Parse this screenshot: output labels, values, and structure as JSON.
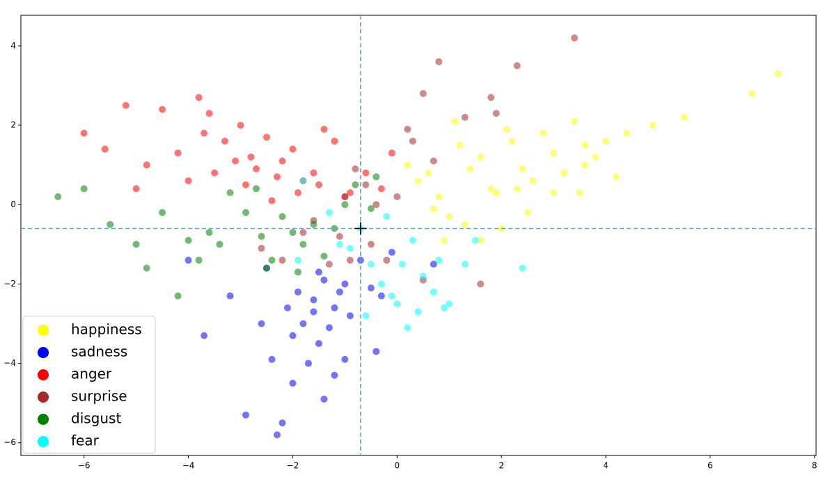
{
  "chart_data": {
    "type": "scatter",
    "xlim": [
      -7.21,
      8.03
    ],
    "ylim": [
      -6.32,
      4.77
    ],
    "xticks": [
      {
        "value": -6,
        "label": "−6"
      },
      {
        "value": -4,
        "label": "−4"
      },
      {
        "value": -2,
        "label": "−2"
      },
      0,
      2,
      4,
      6,
      8
    ],
    "yticks": [
      {
        "value": -6,
        "label": "−6"
      },
      {
        "value": -4,
        "label": "−4"
      },
      {
        "value": -2,
        "label": "−2"
      },
      0,
      2,
      4
    ],
    "crosshair": {
      "x": -0.7,
      "y": -0.6,
      "color": "#5fa2d0"
    },
    "legend": "lower left",
    "series": [
      {
        "name": "happiness",
        "color": "#ffff00",
        "x": [
          0.2,
          0.4,
          0.6,
          0.8,
          1.0,
          1.2,
          1.4,
          1.6,
          1.8,
          2.0,
          2.2,
          2.4,
          2.6,
          2.8,
          3.0,
          3.2,
          3.4,
          3.6,
          3.8,
          4.0,
          4.4,
          4.9,
          0.9,
          1.3,
          1.9,
          2.5,
          3.0,
          3.5,
          4.2,
          5.5,
          6.8,
          7.3,
          1.1,
          0.7,
          2.1,
          3.6,
          1.6,
          2.3
        ],
        "values": [
          1.0,
          0.6,
          0.8,
          0.2,
          -0.3,
          1.5,
          0.9,
          1.2,
          0.4,
          -0.6,
          1.6,
          0.9,
          0.6,
          1.8,
          1.3,
          0.8,
          2.1,
          1.5,
          1.2,
          1.6,
          1.8,
          2.0,
          -0.9,
          -0.5,
          0.3,
          -0.2,
          0.3,
          0.3,
          0.7,
          2.2,
          2.8,
          3.3,
          2.1,
          -0.1,
          1.9,
          1.0,
          -0.9,
          0.4
        ]
      },
      {
        "name": "sadness",
        "color": "#0000ff",
        "x": [
          -1.5,
          -1.4,
          -1.2,
          -1.0,
          -0.9,
          -1.6,
          -1.3,
          -1.8,
          -1.1,
          -0.7,
          -0.5,
          -0.3,
          -0.1,
          0.7,
          -1.5,
          -2.2,
          -2.0,
          -2.4,
          -2.6,
          -1.9,
          -1.7,
          -2.3,
          -2.0,
          -1.6,
          -3.2,
          -3.7,
          -2.9,
          -1.2,
          -0.4,
          -4.0,
          -2.1,
          -1.0,
          -2.5,
          -1.4
        ],
        "values": [
          -3.5,
          -1.9,
          -2.6,
          -2.0,
          -2.8,
          -2.4,
          -3.1,
          -3.0,
          -2.2,
          -1.4,
          -2.1,
          -2.3,
          -1.2,
          -1.5,
          -1.7,
          -5.5,
          -4.5,
          -3.9,
          -3.0,
          -2.2,
          -4.0,
          -5.8,
          -3.3,
          -2.7,
          -2.3,
          -3.3,
          -5.3,
          -4.3,
          -3.7,
          -1.4,
          -2.6,
          -3.9,
          -1.6,
          -4.9
        ]
      },
      {
        "name": "anger",
        "color": "#ff0000",
        "x": [
          -3.7,
          -3.3,
          -3.0,
          -2.8,
          -2.5,
          -2.2,
          -2.0,
          -1.8,
          -1.6,
          -1.2,
          -0.6,
          -0.1,
          -3.5,
          -3.1,
          -2.7,
          -2.3,
          -1.9,
          -1.5,
          -0.9,
          -4.2,
          -4.8,
          -5.2,
          -5.6,
          -6.0,
          -4.5,
          -3.8,
          -2.9,
          -1.0,
          -0.3,
          -5.0,
          -3.6,
          -2.4,
          -1.4,
          -4.0
        ],
        "values": [
          1.8,
          1.6,
          2.0,
          1.2,
          1.7,
          1.1,
          1.4,
          0.6,
          0.8,
          1.6,
          0.8,
          1.3,
          0.8,
          1.1,
          0.9,
          0.7,
          0.3,
          0.5,
          0.3,
          1.3,
          1.0,
          2.5,
          1.4,
          1.8,
          2.4,
          2.7,
          0.5,
          0.2,
          0.4,
          0.4,
          2.3,
          0.1,
          1.9,
          0.6
        ]
      },
      {
        "name": "surprise",
        "color": "#a52a2a",
        "x": [
          -0.8,
          -0.6,
          -0.4,
          -0.9,
          -1.1,
          0.0,
          0.7,
          0.2,
          0.5,
          -1.3,
          -1.6,
          -1.8,
          -2.2,
          1.3,
          1.9,
          2.3,
          3.4,
          0.8,
          1.8,
          -0.5,
          -1.0,
          0.3,
          -2.6,
          0.5,
          1.6,
          -0.2
        ],
        "values": [
          0.9,
          0.5,
          0.0,
          -1.4,
          -0.8,
          0.2,
          1.1,
          1.9,
          2.8,
          -1.5,
          -0.4,
          -0.7,
          -1.4,
          2.2,
          2.3,
          3.5,
          4.2,
          3.6,
          2.7,
          -1.0,
          0.2,
          1.6,
          -1.1,
          -1.9,
          -2.0,
          -1.4
        ]
      },
      {
        "name": "disgust",
        "color": "#008000",
        "x": [
          -3.2,
          -2.9,
          -2.6,
          -2.4,
          -2.2,
          -2.0,
          -1.8,
          -1.6,
          -1.4,
          -1.0,
          -0.5,
          -3.6,
          -4.0,
          -3.8,
          -2.7,
          -1.9,
          -0.8,
          -4.5,
          -5.0,
          -5.5,
          -6.0,
          -6.5,
          -4.8,
          -3.4,
          -2.5,
          -1.2,
          -0.4,
          -4.2
        ],
        "values": [
          0.3,
          -0.2,
          -0.8,
          -1.4,
          -0.3,
          -0.7,
          -1.0,
          -0.5,
          -1.3,
          0.0,
          -0.1,
          -0.7,
          -0.9,
          -1.4,
          0.4,
          -1.7,
          0.5,
          -0.2,
          -1.0,
          -0.5,
          0.4,
          0.2,
          -1.6,
          -1.0,
          -1.6,
          -0.6,
          0.7,
          -2.3
        ]
      },
      {
        "name": "fear",
        "color": "#00ffff",
        "x": [
          -0.7,
          -0.5,
          -0.3,
          -0.1,
          0.1,
          0.3,
          0.5,
          0.7,
          0.9,
          1.3,
          1.5,
          -0.9,
          -1.1,
          -1.3,
          -1.8,
          -0.6,
          0.0,
          0.4,
          0.2,
          1.0,
          2.4,
          -0.2,
          -1.9,
          0.8
        ],
        "values": [
          -0.6,
          -1.5,
          -2.0,
          -2.3,
          -1.5,
          -0.9,
          -1.8,
          -2.2,
          -2.6,
          -1.5,
          -0.9,
          -1.1,
          -1.0,
          -0.2,
          0.6,
          -2.8,
          -2.5,
          -2.7,
          -3.1,
          -2.5,
          -1.6,
          -0.3,
          -1.4,
          -1.4
        ]
      }
    ]
  }
}
